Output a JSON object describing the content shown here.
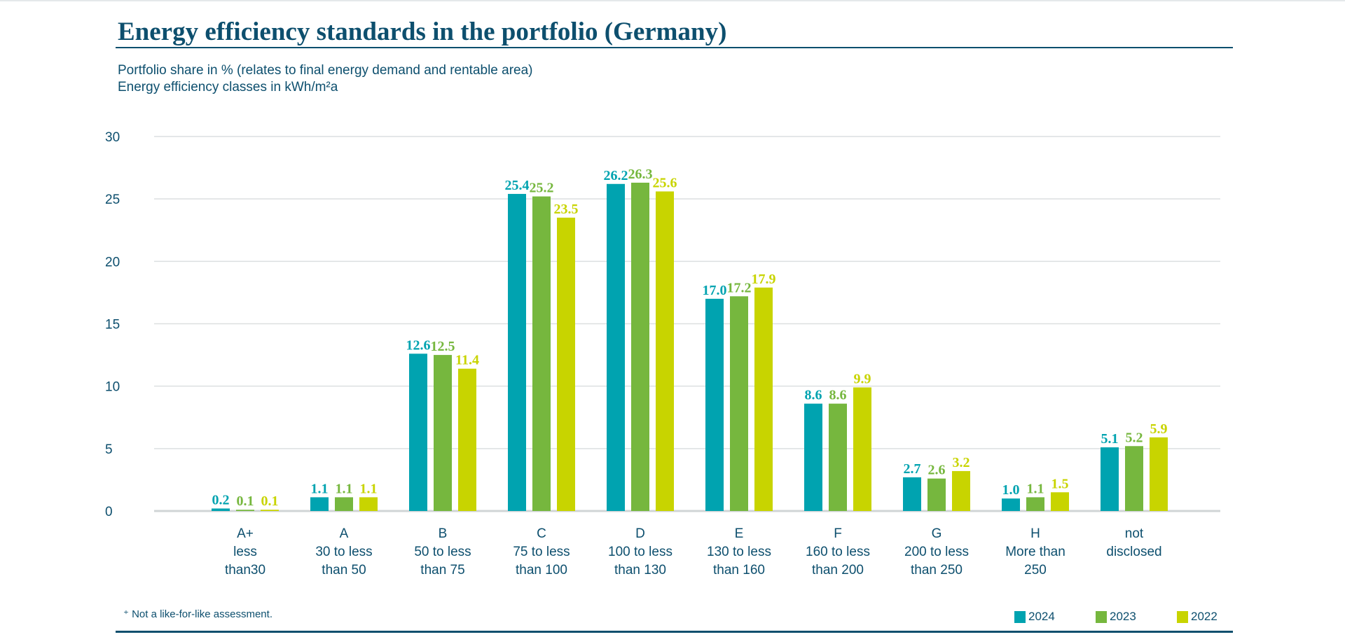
{
  "title": "Energy efficiency standards in the portfolio (Germany)",
  "subtitle_lines": [
    "Portfolio share in % (relates to final energy demand and rentable area)",
    "Energy efficiency classes in kWh/m²a"
  ],
  "footnote": "⁺ Not a like-for-like assessment.",
  "chart_data": {
    "type": "bar",
    "title": "Energy efficiency standards in the portfolio (Germany)",
    "ylim": [
      0,
      30
    ],
    "yticks": [
      0,
      5,
      10,
      15,
      20,
      25,
      30
    ],
    "grid": true,
    "legend_position": "bottom-right",
    "categories": [
      [
        "A+",
        "less",
        "than30"
      ],
      [
        "A",
        "30 to less",
        "than 50"
      ],
      [
        "B",
        "50 to less",
        "than 75"
      ],
      [
        "C",
        "75 to less",
        "than 100"
      ],
      [
        "D",
        "100 to less",
        "than 130"
      ],
      [
        "E",
        "130 to less",
        "than 160"
      ],
      [
        "F",
        "160 to less",
        "than 200"
      ],
      [
        "G",
        "200 to less",
        "than 250"
      ],
      [
        "H",
        "More than",
        "250"
      ],
      [
        "not",
        "disclosed"
      ]
    ],
    "series": [
      {
        "name": "2024",
        "color": "#00a3b0",
        "values": [
          0.2,
          1.1,
          12.6,
          25.4,
          26.2,
          17.0,
          8.6,
          2.7,
          1.0,
          5.1
        ]
      },
      {
        "name": "2023",
        "color": "#76b73e",
        "values": [
          0.1,
          1.1,
          12.5,
          25.2,
          26.3,
          17.2,
          8.6,
          2.6,
          1.1,
          5.2
        ]
      },
      {
        "name": "2022",
        "color": "#c8d400",
        "values": [
          0.1,
          1.1,
          11.4,
          23.5,
          25.6,
          17.9,
          9.9,
          3.2,
          1.5,
          5.9
        ]
      }
    ]
  }
}
